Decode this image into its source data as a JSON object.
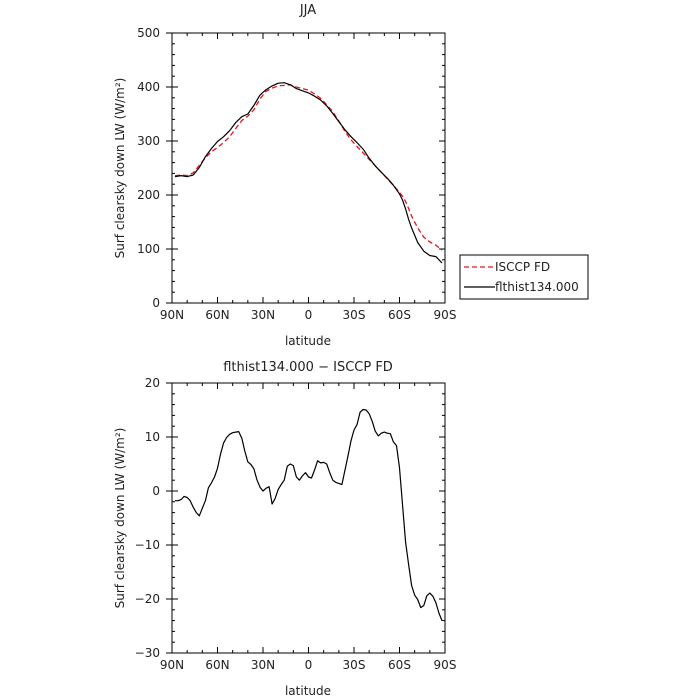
{
  "chart_data": [
    {
      "type": "line",
      "title": "JJA",
      "xlabel": "latitude",
      "ylabel": "Surf clearsky down LW (W/m²)",
      "xlim": [
        90,
        -90
      ],
      "ylim": [
        0,
        500
      ],
      "x_ticks": [
        {
          "v": 90,
          "label": "90N"
        },
        {
          "v": 60,
          "label": "60N"
        },
        {
          "v": 30,
          "label": "30N"
        },
        {
          "v": 0,
          "label": "0"
        },
        {
          "v": -30,
          "label": "30S"
        },
        {
          "v": -60,
          "label": "60S"
        },
        {
          "v": -90,
          "label": "90S"
        }
      ],
      "y_ticks": [
        {
          "v": 0,
          "label": "0"
        },
        {
          "v": 100,
          "label": "100"
        },
        {
          "v": 200,
          "label": "200"
        },
        {
          "v": 300,
          "label": "300"
        },
        {
          "v": 400,
          "label": "400"
        },
        {
          "v": 500,
          "label": "500"
        }
      ],
      "legend_position": "outside-right",
      "series": [
        {
          "name": "ISCCP FD",
          "color": "#e8141a",
          "dash": "dashed",
          "x": [
            88,
            84,
            80,
            76,
            72,
            68,
            64,
            60,
            56,
            52,
            48,
            44,
            40,
            36,
            32,
            28,
            24,
            20,
            16,
            12,
            8,
            4,
            0,
            -4,
            -8,
            -12,
            -16,
            -20,
            -24,
            -28,
            -32,
            -36,
            -40,
            -44,
            -48,
            -52,
            -56,
            -60,
            -62,
            -64,
            -66,
            -68,
            -72,
            -76,
            -80,
            -84,
            -88
          ],
          "y": [
            236,
            237,
            236,
            241,
            255,
            269,
            280,
            288,
            297,
            308,
            323,
            338,
            346,
            358,
            378,
            392,
            398,
            402,
            403,
            404,
            400,
            397,
            394,
            387,
            379,
            367,
            354,
            337,
            318,
            302,
            290,
            278,
            266,
            254,
            242,
            230,
            218,
            205,
            198,
            188,
            175,
            161,
            139,
            122,
            113,
            107,
            98
          ]
        },
        {
          "name": "flthist134.000",
          "color": "#000000",
          "dash": "solid",
          "x": [
            88,
            84,
            80,
            76,
            72,
            68,
            64,
            60,
            56,
            52,
            48,
            44,
            40,
            36,
            32,
            28,
            24,
            20,
            16,
            12,
            8,
            4,
            0,
            -4,
            -8,
            -12,
            -16,
            -20,
            -24,
            -28,
            -32,
            -36,
            -40,
            -44,
            -48,
            -52,
            -56,
            -60,
            -62,
            -64,
            -66,
            -68,
            -72,
            -76,
            -80,
            -84,
            -88
          ],
          "y": [
            234,
            236,
            234,
            237,
            251,
            271,
            286,
            299,
            308,
            319,
            334,
            345,
            350,
            366,
            385,
            395,
            402,
            407,
            408,
            404,
            397,
            393,
            389,
            383,
            376,
            365,
            351,
            336,
            321,
            308,
            297,
            285,
            268,
            254,
            242,
            231,
            218,
            202,
            191,
            174,
            155,
            139,
            112,
            96,
            88,
            86,
            74
          ]
        }
      ]
    },
    {
      "type": "line",
      "title": "flthist134.000 − ISCCP FD",
      "xlabel": "latitude",
      "ylabel": "Surf clearsky down LW (W/m²)",
      "xlim": [
        90,
        -90
      ],
      "ylim": [
        -30,
        20
      ],
      "x_ticks": [
        {
          "v": 90,
          "label": "90N"
        },
        {
          "v": 60,
          "label": "60N"
        },
        {
          "v": 30,
          "label": "30N"
        },
        {
          "v": 0,
          "label": "0"
        },
        {
          "v": -30,
          "label": "30S"
        },
        {
          "v": -60,
          "label": "60S"
        },
        {
          "v": -90,
          "label": "90S"
        }
      ],
      "y_ticks": [
        {
          "v": -30,
          "label": "−30"
        },
        {
          "v": -20,
          "label": "−20"
        },
        {
          "v": -10,
          "label": "−10"
        },
        {
          "v": 0,
          "label": "0"
        },
        {
          "v": 10,
          "label": "10"
        },
        {
          "v": 20,
          "label": "20"
        }
      ],
      "series": [
        {
          "color": "#000000",
          "dash": "solid",
          "x": [
            88,
            86,
            84,
            82,
            80,
            78,
            76,
            74,
            72,
            70,
            68,
            66,
            64,
            62,
            60,
            58,
            56,
            54,
            52,
            50,
            48,
            46,
            44,
            42,
            40,
            38,
            36,
            34,
            32,
            30,
            28,
            26,
            24,
            22,
            20,
            18,
            16,
            14,
            12,
            10,
            8,
            6,
            4,
            2,
            0,
            -2,
            -4,
            -6,
            -8,
            -10,
            -12,
            -14,
            -16,
            -18,
            -20,
            -22,
            -24,
            -26,
            -28,
            -30,
            -32,
            -34,
            -36,
            -38,
            -40,
            -42,
            -44,
            -46,
            -48,
            -50,
            -52,
            -54,
            -56,
            -58,
            -60,
            -62,
            -64,
            -66,
            -68,
            -70,
            -72,
            -74,
            -76,
            -78,
            -80,
            -82,
            -84,
            -86,
            -88
          ],
          "y": [
            -1.8,
            -1.8,
            -1.6,
            -1.0,
            -1.2,
            -1.8,
            -3.0,
            -4.0,
            -4.6,
            -3.2,
            -1.8,
            0.6,
            1.5,
            2.6,
            4.2,
            6.8,
            8.9,
            9.9,
            10.5,
            10.8,
            10.9,
            11.0,
            9.8,
            7.4,
            5.4,
            4.9,
            4.1,
            2.1,
            0.7,
            0.0,
            0.5,
            0.8,
            -2.4,
            -1.4,
            0.3,
            1.2,
            2.0,
            4.6,
            5.0,
            4.7,
            2.6,
            2.0,
            2.8,
            3.4,
            2.6,
            2.4,
            3.9,
            5.6,
            5.2,
            5.3,
            5.0,
            3.4,
            2.0,
            1.6,
            1.4,
            1.2,
            3.8,
            6.4,
            9.3,
            11.3,
            12.3,
            14.6,
            15.1,
            15.0,
            14.3,
            12.9,
            11.1,
            10.2,
            10.7,
            10.9,
            10.7,
            10.6,
            9.1,
            8.4,
            4.3,
            -2.5,
            -9.5,
            -13.6,
            -17.5,
            -19.3,
            -20.1,
            -21.6,
            -21.2,
            -19.4,
            -18.9,
            -19.5,
            -20.7,
            -22.6,
            -24.0
          ]
        }
      ]
    }
  ]
}
